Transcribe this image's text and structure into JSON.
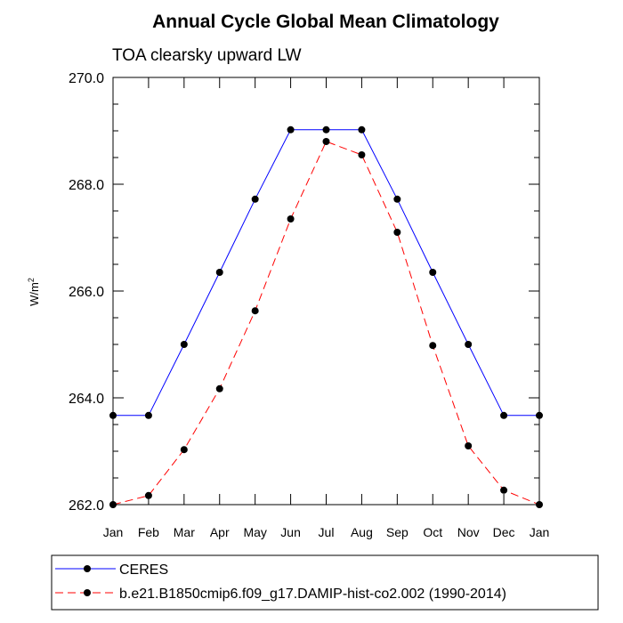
{
  "chart_data": {
    "type": "line",
    "title": "Annual Cycle Global Mean Climatology",
    "subtitle": "TOA clearsky upward LW",
    "ylabel": "W/m",
    "ylabel_superscript": "2",
    "ylim": [
      262.0,
      270.0
    ],
    "yticks": [
      262.0,
      264.0,
      266.0,
      268.0,
      270.0
    ],
    "ytick_labels": [
      "262.0",
      "264.0",
      "266.0",
      "268.0",
      "270.0"
    ],
    "categories": [
      "Jan",
      "Feb",
      "Mar",
      "Apr",
      "May",
      "Jun",
      "Jul",
      "Aug",
      "Sep",
      "Oct",
      "Nov",
      "Dec",
      "Jan"
    ],
    "series": [
      {
        "name": "CERES",
        "color": "#0000ff",
        "dash": "solid",
        "values": [
          263.67,
          263.67,
          265.0,
          266.35,
          267.72,
          269.02,
          269.02,
          269.02,
          267.72,
          266.35,
          265.0,
          263.67,
          263.67
        ]
      },
      {
        "name": "b.e21.B1850cmip6.f09_g17.DAMIP-hist-co2.002 (1990-2014)",
        "color": "#ff0000",
        "dash": "dashed",
        "values": [
          262.0,
          262.17,
          263.03,
          264.17,
          265.63,
          267.35,
          268.8,
          268.55,
          267.1,
          264.98,
          263.1,
          262.27,
          262.0
        ]
      }
    ],
    "marker_color": "#000000",
    "legend_position": "bottom"
  }
}
